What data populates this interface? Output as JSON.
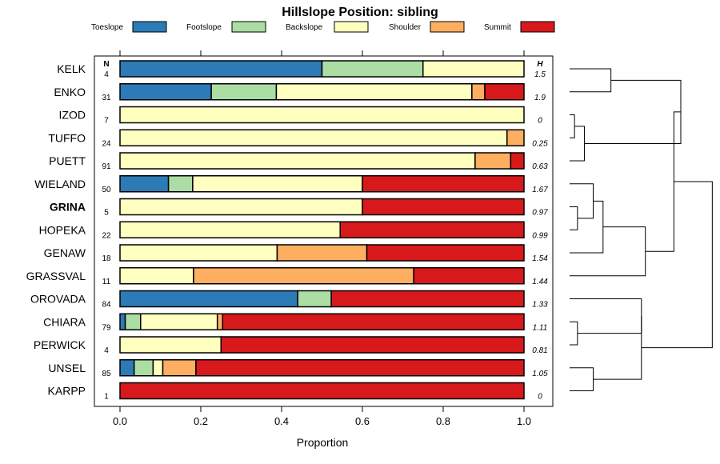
{
  "chart_data": {
    "type": "bar",
    "orientation": "horizontal-stacked",
    "title": "Hillslope Position: sibling",
    "xlabel": "Proportion",
    "ylabel": "",
    "xlim": [
      0,
      1
    ],
    "xticks": [
      "0.0",
      "0.2",
      "0.4",
      "0.6",
      "0.8",
      "1.0"
    ],
    "n_header": "N",
    "h_header": "H",
    "legend_position": "top",
    "grid": false,
    "categories": [
      "Toeslope",
      "Footslope",
      "Backslope",
      "Shoulder",
      "Summit"
    ],
    "colors": [
      "#2c7bb6",
      "#abdda4",
      "#ffffbf",
      "#fdae61",
      "#d7191c"
    ],
    "bold_row": "GRINA",
    "rows": [
      {
        "name": "KELK",
        "n": "4",
        "h": "1.5",
        "values": [
          0.5,
          0.25,
          0.25,
          0,
          0
        ]
      },
      {
        "name": "ENKO",
        "n": "31",
        "h": "1.9",
        "values": [
          0.226,
          0.161,
          0.484,
          0.032,
          0.097
        ]
      },
      {
        "name": "IZOD",
        "n": "7",
        "h": "0",
        "values": [
          0,
          0,
          1,
          0,
          0
        ]
      },
      {
        "name": "TUFFO",
        "n": "24",
        "h": "0.25",
        "values": [
          0,
          0,
          0.958,
          0.042,
          0
        ]
      },
      {
        "name": "PUETT",
        "n": "91",
        "h": "0.63",
        "values": [
          0,
          0,
          0.879,
          0.088,
          0.033
        ]
      },
      {
        "name": "WIELAND",
        "n": "50",
        "h": "1.67",
        "values": [
          0.12,
          0.06,
          0.42,
          0,
          0.4
        ]
      },
      {
        "name": "GRINA",
        "n": "5",
        "h": "0.97",
        "values": [
          0,
          0,
          0.6,
          0,
          0.4
        ]
      },
      {
        "name": "HOPEKA",
        "n": "22",
        "h": "0.99",
        "values": [
          0,
          0,
          0.545,
          0,
          0.455
        ]
      },
      {
        "name": "GENAW",
        "n": "18",
        "h": "1.54",
        "values": [
          0,
          0,
          0.389,
          0.222,
          0.389
        ]
      },
      {
        "name": "GRASSVAL",
        "n": "11",
        "h": "1.44",
        "values": [
          0,
          0,
          0.182,
          0.545,
          0.273
        ]
      },
      {
        "name": "OROVADA",
        "n": "84",
        "h": "1.33",
        "values": [
          0.44,
          0.083,
          0,
          0,
          0.477
        ]
      },
      {
        "name": "CHIARA",
        "n": "79",
        "h": "1.11",
        "values": [
          0.013,
          0.038,
          0.19,
          0.013,
          0.746
        ]
      },
      {
        "name": "PERWICK",
        "n": "4",
        "h": "0.81",
        "values": [
          0,
          0,
          0.25,
          0,
          0.75
        ]
      },
      {
        "name": "UNSEL",
        "n": "85",
        "h": "1.05",
        "values": [
          0.035,
          0.047,
          0.024,
          0.082,
          0.812
        ]
      },
      {
        "name": "KARPP",
        "n": "1",
        "h": "0",
        "values": [
          0,
          0,
          0,
          0,
          1
        ]
      }
    ],
    "dendrogram": {
      "merges": [
        {
          "a": "IZOD",
          "b": "TUFFO",
          "height": 0.05
        },
        {
          "a": "GRINA",
          "b": "HOPEKA",
          "height": 0.08
        },
        {
          "a": "UNSEL",
          "b": "KARPP",
          "height": 0.24
        },
        {
          "a": "CHIARA",
          "b": "PERWICK",
          "height": 0.08
        },
        {
          "a": "m1",
          "b": "PUETT",
          "height": 0.15
        },
        {
          "a": "WIELAND",
          "b": "m2",
          "height": 0.24
        },
        {
          "a": "KELK",
          "b": "ENKO",
          "height": 0.42
        },
        {
          "a": "m6",
          "b": "GENAW",
          "height": 0.34
        },
        {
          "a": "OROVADA",
          "b": "m4",
          "height": 0.73
        },
        {
          "a": "m8",
          "b": "GRASSVAL",
          "height": 0.77
        },
        {
          "a": "m7",
          "b": "m5",
          "height": 1.13
        },
        {
          "a": "m9",
          "b": "m3",
          "height": 0.73
        },
        {
          "a": "m11",
          "b": "m10",
          "height": 1.06
        },
        {
          "a": "m13",
          "b": "m12",
          "height": 1.45
        }
      ]
    }
  }
}
